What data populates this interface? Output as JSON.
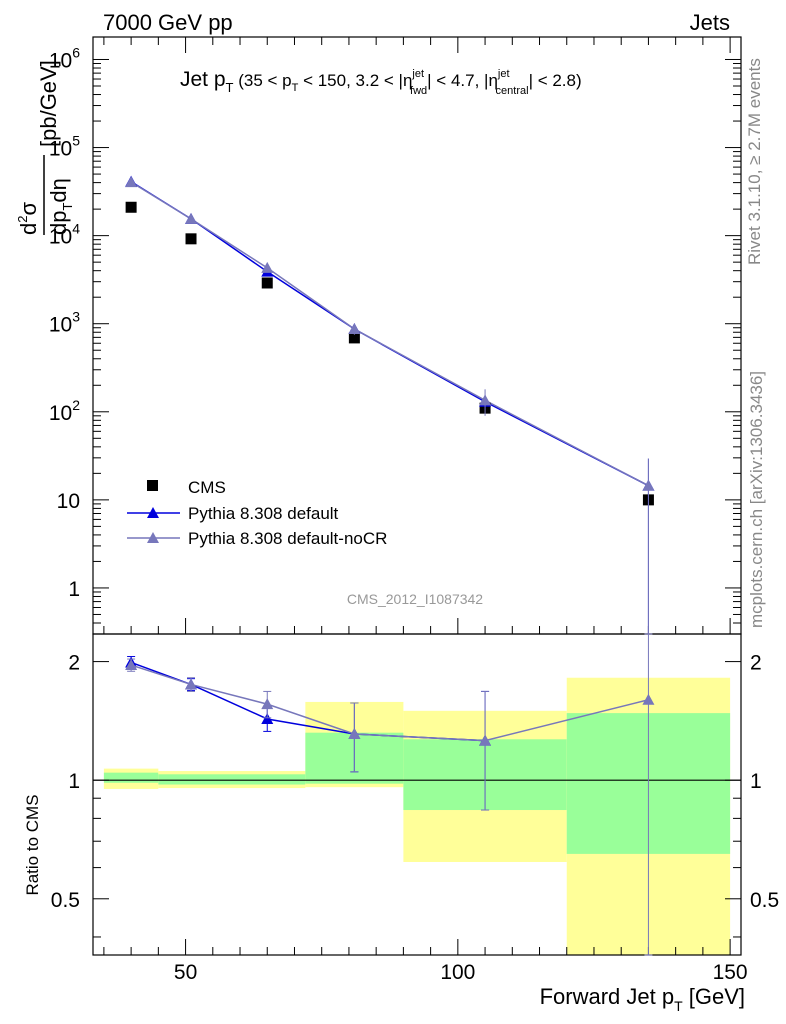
{
  "header": {
    "left": "7000 GeV pp",
    "right": "Jets"
  },
  "side_labels": {
    "rivet": "Rivet 3.1.10, ≥ 2.7M events",
    "mcplots": "mcplots.cern.ch [arXiv:1306.3436]"
  },
  "watermark": "CMS_2012_I1087342",
  "chart_data": [
    {
      "type": "scatter",
      "title": "Jet p_T (35 < p_T < 150, 3.2 < |η_fwd^jet| < 4.7, |η_central^jet| < 2.8)",
      "ylabel": "d²σ/dp_T dη [pb/GeV]",
      "yscale": "log",
      "ylim": [
        0.3,
        1800000
      ],
      "xlim": [
        33,
        152
      ],
      "y_ticks": [
        "10^6",
        "10^5",
        "10^4",
        "10^3",
        "10^2",
        "10",
        "1"
      ],
      "series": [
        {
          "name": "CMS",
          "color": "#000000",
          "x": [
            40,
            51,
            65,
            81,
            105,
            135
          ],
          "y": [
            21000,
            9200,
            2900,
            690,
            110,
            10
          ]
        },
        {
          "name": "Pythia 8.308 default",
          "color": "#0000dd",
          "x": [
            40,
            51,
            65,
            81,
            105,
            135
          ],
          "y": [
            41000,
            15500,
            3900,
            870,
            130,
            14.5
          ],
          "err": [
            1200,
            600,
            250,
            80,
            25,
            15
          ]
        },
        {
          "name": "Pythia 8.308 default-noCR",
          "color": "#7777bb",
          "x": [
            40,
            51,
            65,
            81,
            105,
            135
          ],
          "y": [
            40500,
            15500,
            4300,
            870,
            135,
            14.5
          ],
          "err": [
            1200,
            600,
            300,
            120,
            45,
            15
          ]
        }
      ]
    },
    {
      "type": "line",
      "xlabel": "Forward Jet p_T [GeV]",
      "ylabel": "Ratio to CMS",
      "ylim": [
        0.36,
        2.35
      ],
      "xlim": [
        33,
        152
      ],
      "x_ticks": [
        50,
        100,
        150
      ],
      "y_ticks": [
        0.5,
        1,
        2
      ],
      "bands": [
        {
          "x0": 35,
          "x1": 45,
          "yellow": [
            0.95,
            1.07
          ],
          "green": [
            0.985,
            1.045
          ]
        },
        {
          "x0": 45,
          "x1": 72,
          "yellow": [
            0.955,
            1.055
          ],
          "green": [
            0.975,
            1.035
          ]
        },
        {
          "x0": 72,
          "x1": 90,
          "yellow": [
            0.96,
            1.58
          ],
          "green": [
            0.98,
            1.32
          ]
        },
        {
          "x0": 90,
          "x1": 120,
          "yellow": [
            0.62,
            1.5
          ],
          "green": [
            0.84,
            1.27
          ]
        },
        {
          "x0": 120,
          "x1": 150,
          "yellow": [
            0.36,
            1.82
          ],
          "green": [
            0.65,
            1.48
          ]
        }
      ],
      "series": [
        {
          "name": "Pythia 8.308 default",
          "color": "#0000dd",
          "x": [
            40,
            51,
            65,
            81,
            105
          ],
          "y": [
            1.99,
            1.75,
            1.43,
            1.31,
            1.26
          ],
          "err": [
            0.07,
            0.06,
            0.1,
            0.26,
            0.42
          ]
        },
        {
          "name": "Pythia 8.308 default-noCR",
          "color": "#7777bb",
          "x": [
            40,
            51,
            65,
            81,
            105,
            135
          ],
          "y": [
            1.96,
            1.75,
            1.56,
            1.31,
            1.26,
            1.6
          ],
          "err": [
            0.07,
            0.07,
            0.12,
            0.26,
            0.42,
            1.3
          ]
        }
      ]
    }
  ]
}
